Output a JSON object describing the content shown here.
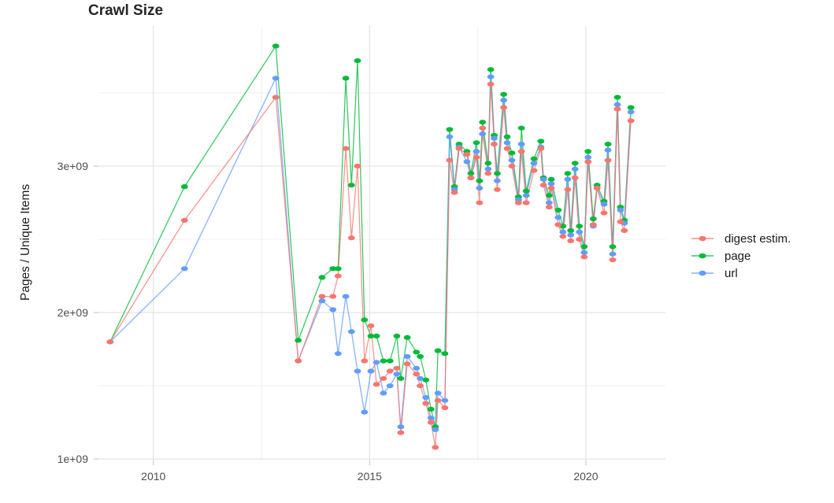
{
  "title": "Crawl Size",
  "y_axis_title": "Pages / Unique Items",
  "legend": {
    "items": [
      {
        "label": "digest estim.",
        "color": "#F8766D"
      },
      {
        "label": "page",
        "color": "#00BA38"
      },
      {
        "label": "url",
        "color": "#619CFF"
      }
    ]
  },
  "chart_data": {
    "type": "line",
    "title": "Crawl Size",
    "xlabel": "",
    "ylabel": "Pages / Unique Items",
    "y_unit": "pages (billions, axis shown as e+09)",
    "x_unit": "year (decimal)",
    "grid": true,
    "legend_position": "right",
    "x_range": [
      2008.73,
      2021.84
    ],
    "y_range": [
      0.99,
      3.957
    ],
    "x_ticks": [
      2010,
      2015,
      2020
    ],
    "x_tick_labels": [
      "2010",
      "2015",
      "2020"
    ],
    "x_minor_ticks": [
      2012.5,
      2017.5
    ],
    "y_ticks": [
      1,
      2,
      3
    ],
    "y_tick_labels": [
      "1e+09",
      "2e+09",
      "3e+09"
    ],
    "y_minor_ticks": [
      1.5,
      2.5,
      3.5
    ],
    "x": [
      2009.0,
      2010.72,
      2012.83,
      2013.35,
      2013.9,
      2014.15,
      2014.27,
      2014.45,
      2014.58,
      2014.72,
      2014.88,
      2015.03,
      2015.16,
      2015.32,
      2015.47,
      2015.63,
      2015.72,
      2015.87,
      2016.08,
      2016.17,
      2016.3,
      2016.42,
      2016.52,
      2016.58,
      2016.74,
      2016.85,
      2016.96,
      2017.07,
      2017.25,
      2017.34,
      2017.47,
      2017.54,
      2017.61,
      2017.74,
      2017.8,
      2017.88,
      2017.95,
      2018.1,
      2018.18,
      2018.29,
      2018.44,
      2018.51,
      2018.62,
      2018.8,
      2018.96,
      2019.02,
      2019.15,
      2019.2,
      2019.36,
      2019.47,
      2019.58,
      2019.65,
      2019.75,
      2019.85,
      2019.96,
      2020.05,
      2020.17,
      2020.26,
      2020.42,
      2020.51,
      2020.62,
      2020.73,
      2020.8,
      2020.89,
      2021.04
    ],
    "series": [
      {
        "name": "digest estim.",
        "color": "#F8766D",
        "values": [
          1.8,
          2.63,
          3.47,
          1.67,
          2.11,
          2.11,
          2.25,
          3.12,
          2.51,
          3.0,
          1.67,
          1.91,
          1.51,
          1.55,
          1.6,
          1.62,
          1.18,
          1.65,
          1.58,
          1.5,
          1.38,
          1.25,
          1.08,
          1.4,
          1.35,
          3.04,
          2.82,
          3.12,
          3.08,
          2.92,
          3.06,
          2.75,
          3.26,
          2.95,
          3.56,
          3.15,
          2.84,
          3.4,
          3.12,
          3.0,
          2.75,
          3.1,
          2.75,
          2.97,
          3.12,
          2.87,
          2.72,
          2.85,
          2.6,
          2.52,
          2.84,
          2.49,
          2.92,
          2.5,
          2.38,
          3.03,
          2.6,
          2.85,
          2.68,
          3.04,
          2.36,
          3.39,
          2.62,
          2.56,
          3.31
        ]
      },
      {
        "name": "page",
        "color": "#00BA38",
        "values": [
          1.8,
          2.86,
          3.82,
          1.81,
          2.24,
          2.3,
          2.3,
          3.6,
          2.87,
          3.72,
          1.95,
          1.84,
          1.84,
          1.67,
          1.67,
          1.84,
          1.55,
          1.83,
          1.73,
          1.7,
          1.54,
          1.34,
          1.22,
          1.74,
          1.72,
          3.25,
          2.86,
          3.15,
          3.1,
          2.95,
          3.16,
          2.9,
          3.3,
          3.02,
          3.66,
          3.21,
          2.95,
          3.49,
          3.2,
          3.09,
          2.79,
          3.26,
          2.83,
          3.05,
          3.17,
          2.92,
          2.8,
          2.91,
          2.7,
          2.59,
          2.95,
          2.56,
          3.02,
          2.59,
          2.45,
          3.1,
          2.64,
          2.87,
          2.76,
          3.15,
          2.45,
          3.47,
          2.72,
          2.63,
          3.4
        ]
      },
      {
        "name": "url",
        "color": "#619CFF",
        "values": [
          1.8,
          2.3,
          3.6,
          1.67,
          2.08,
          2.02,
          1.72,
          2.11,
          1.87,
          1.6,
          1.32,
          1.6,
          1.66,
          1.45,
          1.5,
          1.58,
          1.22,
          1.7,
          1.62,
          1.55,
          1.42,
          1.28,
          1.2,
          1.45,
          1.4,
          3.2,
          2.84,
          3.13,
          3.03,
          2.92,
          3.1,
          2.85,
          3.22,
          2.98,
          3.61,
          3.19,
          2.9,
          3.45,
          3.16,
          3.04,
          2.77,
          3.15,
          2.8,
          3.02,
          3.13,
          2.91,
          2.75,
          2.88,
          2.65,
          2.55,
          2.91,
          2.53,
          2.98,
          2.55,
          2.41,
          3.06,
          2.59,
          2.85,
          2.74,
          3.11,
          2.4,
          3.42,
          2.7,
          2.61,
          3.37
        ]
      }
    ]
  }
}
